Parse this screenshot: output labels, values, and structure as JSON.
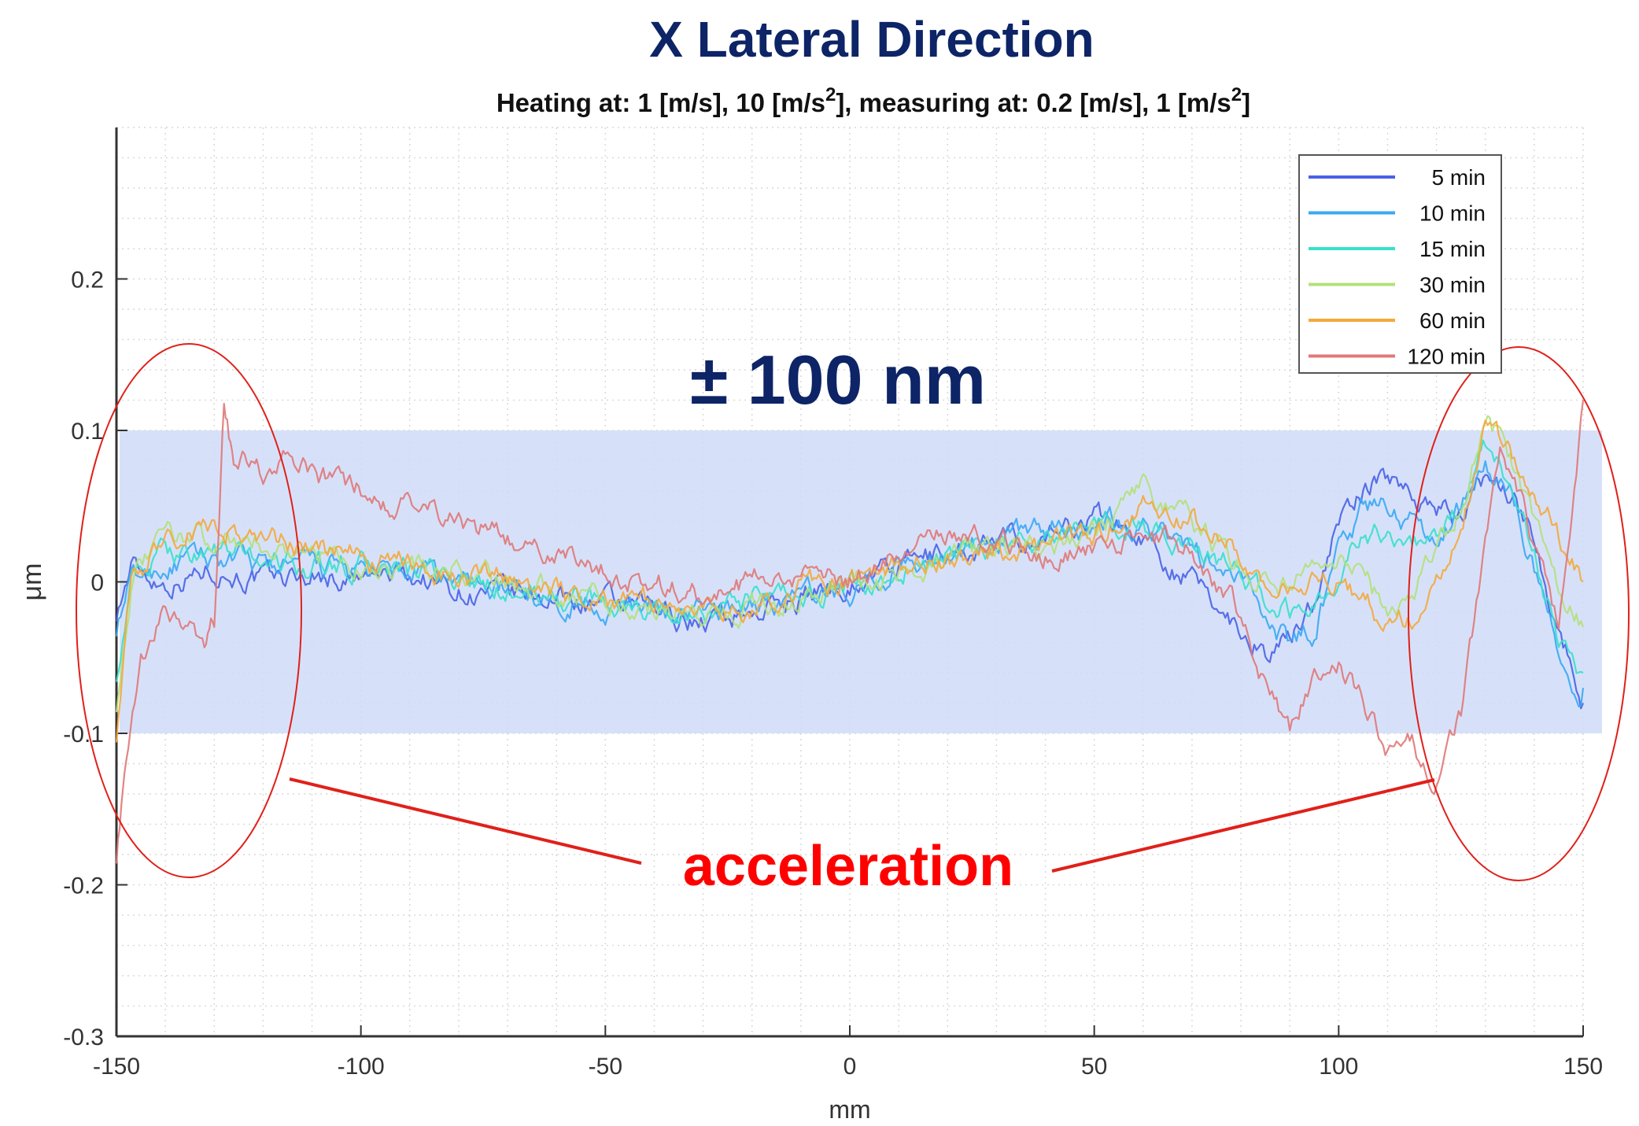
{
  "chart_data": {
    "type": "line",
    "title": "X Lateral Direction",
    "subtitle": "Heating at: 1 [m/s], 10 [m/s",
    "subtitle_sup1": "2",
    "subtitle_mid": "], measuring at: 0.2 [m/s], 1 [m/s",
    "subtitle_sup2": "2",
    "subtitle_end": "]",
    "xlabel": "mm",
    "ylabel": "μm",
    "xlim": [
      -150,
      150
    ],
    "ylim": [
      -0.3,
      0.3
    ],
    "x_ticks": [
      "-150",
      "-100",
      "-50",
      "0",
      "50",
      "100",
      "150"
    ],
    "y_ticks": [
      "0.2",
      "0.1",
      "0",
      "-0.1",
      "-0.2",
      "-0.3"
    ],
    "grid": true,
    "legend_position": "top-right",
    "tolerance_band": {
      "range": [
        -0.1,
        0.1
      ],
      "label": "± 100 nm",
      "color": "#cfdcf8"
    },
    "annotation": {
      "label": "acceleration",
      "color": "#ff0000"
    },
    "series": [
      {
        "name": "5 min",
        "color": "#4a62e6",
        "x": [
          -150,
          -147,
          -140,
          -130,
          -120,
          -110,
          -100,
          -90,
          -80,
          -70,
          -60,
          -50,
          -40,
          -30,
          -20,
          -10,
          0,
          10,
          20,
          30,
          40,
          50,
          60,
          70,
          80,
          85,
          90,
          95,
          100,
          105,
          110,
          115,
          120,
          125,
          130,
          135,
          140,
          145,
          150
        ],
        "y": [
          -0.02,
          0.01,
          0.0,
          0.01,
          0.0,
          0.005,
          0.0,
          0.005,
          -0.005,
          -0.01,
          -0.01,
          -0.015,
          -0.02,
          -0.025,
          -0.02,
          -0.01,
          0.0,
          0.01,
          0.02,
          0.025,
          0.03,
          0.045,
          0.03,
          0.0,
          -0.03,
          -0.045,
          -0.04,
          -0.01,
          0.04,
          0.06,
          0.07,
          0.06,
          0.05,
          0.04,
          0.07,
          0.06,
          0.03,
          -0.03,
          -0.08
        ]
      },
      {
        "name": "10 min",
        "color": "#3aa8f4",
        "x": [
          -150,
          -147,
          -140,
          -130,
          -120,
          -110,
          -100,
          -90,
          -80,
          -70,
          -60,
          -50,
          -40,
          -30,
          -20,
          -10,
          0,
          10,
          20,
          30,
          40,
          50,
          60,
          70,
          80,
          85,
          90,
          95,
          100,
          105,
          110,
          115,
          120,
          125,
          130,
          135,
          140,
          145,
          150
        ],
        "y": [
          -0.03,
          0.0,
          0.01,
          0.015,
          0.01,
          0.01,
          0.005,
          0.005,
          0.0,
          -0.005,
          -0.01,
          -0.015,
          -0.02,
          -0.02,
          -0.015,
          -0.01,
          -0.005,
          0.01,
          0.02,
          0.03,
          0.035,
          0.04,
          0.04,
          0.02,
          0.0,
          -0.02,
          -0.04,
          -0.03,
          0.02,
          0.05,
          0.05,
          0.04,
          0.03,
          0.05,
          0.08,
          0.06,
          0.01,
          -0.05,
          -0.07
        ]
      },
      {
        "name": "15 min",
        "color": "#38e0cc",
        "x": [
          -150,
          -147,
          -140,
          -130,
          -120,
          -110,
          -100,
          -90,
          -80,
          -70,
          -60,
          -50,
          -40,
          -30,
          -20,
          -10,
          0,
          10,
          20,
          30,
          40,
          50,
          60,
          70,
          80,
          85,
          90,
          95,
          100,
          105,
          110,
          115,
          120,
          125,
          130,
          135,
          140,
          145,
          150
        ],
        "y": [
          -0.06,
          0.0,
          0.02,
          0.02,
          0.015,
          0.01,
          0.01,
          0.005,
          0.0,
          -0.005,
          -0.01,
          -0.015,
          -0.02,
          -0.02,
          -0.015,
          -0.01,
          -0.005,
          0.005,
          0.015,
          0.025,
          0.03,
          0.035,
          0.035,
          0.025,
          0.005,
          -0.01,
          -0.02,
          -0.02,
          0.01,
          0.03,
          0.035,
          0.03,
          0.02,
          0.05,
          0.09,
          0.07,
          0.02,
          -0.04,
          -0.06
        ]
      },
      {
        "name": "30 min",
        "color": "#b4e07a",
        "x": [
          -150,
          -147,
          -140,
          -130,
          -120,
          -110,
          -100,
          -90,
          -80,
          -70,
          -60,
          -50,
          -40,
          -30,
          -20,
          -10,
          0,
          10,
          20,
          30,
          40,
          50,
          60,
          70,
          80,
          85,
          90,
          95,
          100,
          105,
          110,
          115,
          120,
          125,
          130,
          135,
          140,
          145,
          150
        ],
        "y": [
          -0.08,
          0.0,
          0.03,
          0.03,
          0.025,
          0.02,
          0.01,
          0.01,
          0.005,
          0.0,
          -0.005,
          -0.01,
          -0.02,
          -0.02,
          -0.015,
          -0.01,
          0.0,
          0.005,
          0.015,
          0.02,
          0.025,
          0.03,
          0.06,
          0.04,
          0.01,
          0.0,
          0.0,
          0.005,
          0.01,
          0.0,
          -0.02,
          -0.01,
          0.02,
          0.05,
          0.11,
          0.08,
          0.04,
          0.0,
          -0.03
        ]
      },
      {
        "name": "60 min",
        "color": "#f4a83c",
        "x": [
          -150,
          -147,
          -140,
          -130,
          -120,
          -110,
          -100,
          -90,
          -80,
          -70,
          -60,
          -50,
          -40,
          -30,
          -20,
          -10,
          0,
          10,
          20,
          30,
          40,
          50,
          60,
          70,
          80,
          85,
          90,
          95,
          100,
          105,
          110,
          115,
          120,
          125,
          130,
          135,
          140,
          145,
          150
        ],
        "y": [
          -0.1,
          0.0,
          0.03,
          0.035,
          0.03,
          0.02,
          0.015,
          0.01,
          0.005,
          0.0,
          -0.005,
          -0.01,
          -0.015,
          -0.02,
          -0.015,
          -0.005,
          0.0,
          0.01,
          0.015,
          0.02,
          0.025,
          0.03,
          0.05,
          0.04,
          0.02,
          0.0,
          -0.01,
          0.0,
          0.0,
          -0.01,
          -0.03,
          -0.02,
          0.0,
          0.04,
          0.1,
          0.09,
          0.06,
          0.03,
          0.0
        ]
      },
      {
        "name": "120 min",
        "color": "#e07878",
        "x": [
          -150,
          -148,
          -145,
          -140,
          -135,
          -132,
          -130,
          -128,
          -126,
          -122,
          -120,
          -115,
          -110,
          -100,
          -90,
          -80,
          -70,
          -60,
          -50,
          -40,
          -30,
          -20,
          -10,
          0,
          10,
          20,
          30,
          40,
          50,
          60,
          70,
          80,
          85,
          90,
          95,
          100,
          105,
          110,
          115,
          120,
          125,
          130,
          133,
          136,
          140,
          145,
          150
        ],
        "y": [
          -0.18,
          -0.12,
          -0.06,
          -0.02,
          -0.03,
          -0.05,
          -0.03,
          0.12,
          0.08,
          0.08,
          0.07,
          0.08,
          0.07,
          0.06,
          0.05,
          0.04,
          0.03,
          0.02,
          0.01,
          0.0,
          -0.01,
          0.0,
          0.0,
          0.0,
          0.02,
          0.03,
          0.03,
          0.02,
          0.02,
          0.03,
          0.02,
          -0.02,
          -0.07,
          -0.1,
          -0.06,
          -0.05,
          -0.08,
          -0.11,
          -0.11,
          -0.13,
          -0.09,
          0.02,
          0.08,
          0.07,
          0.02,
          -0.03,
          0.12
        ]
      }
    ]
  }
}
